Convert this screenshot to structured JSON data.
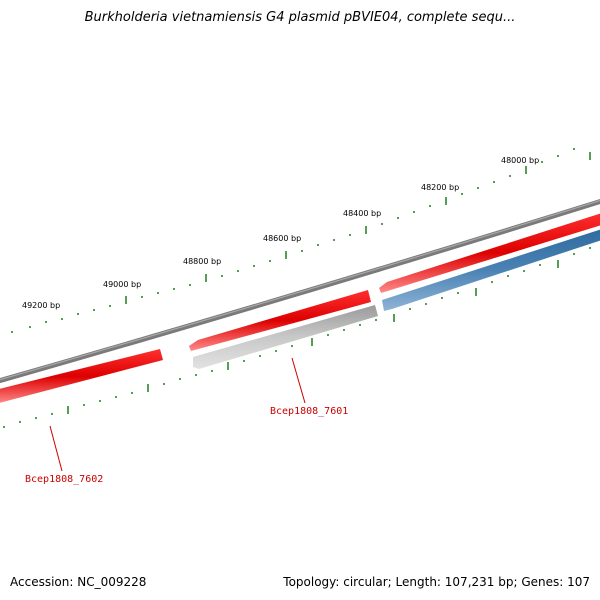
{
  "title": "Burkholderia vietnamiensis G4 plasmid pBVIE04, complete sequ...",
  "footer": {
    "accession": "Accession: NC_009228",
    "summary": "Topology: circular; Length: 107,231 bp; Genes: 107"
  },
  "ruler": {
    "labels": [
      "48000 bp",
      "48200 bp",
      "48400 bp",
      "48600 bp",
      "48800 bp",
      "49000 bp",
      "49200 bp"
    ]
  },
  "genes": [
    {
      "name": "Bcep1808_7601",
      "strand": "reverse",
      "color": "#b9b9b9"
    },
    {
      "name": "Bcep1808_7602",
      "strand": "forward",
      "color": "#ee1111"
    }
  ],
  "colors": {
    "backbone": "#808080",
    "cds_forward": "#ee1111",
    "cds_reverse_blue": "#4a82b4",
    "cds_reverse_gray": "#b9b9b9",
    "tick": "#1a7f1a",
    "label": "#cc0000"
  }
}
